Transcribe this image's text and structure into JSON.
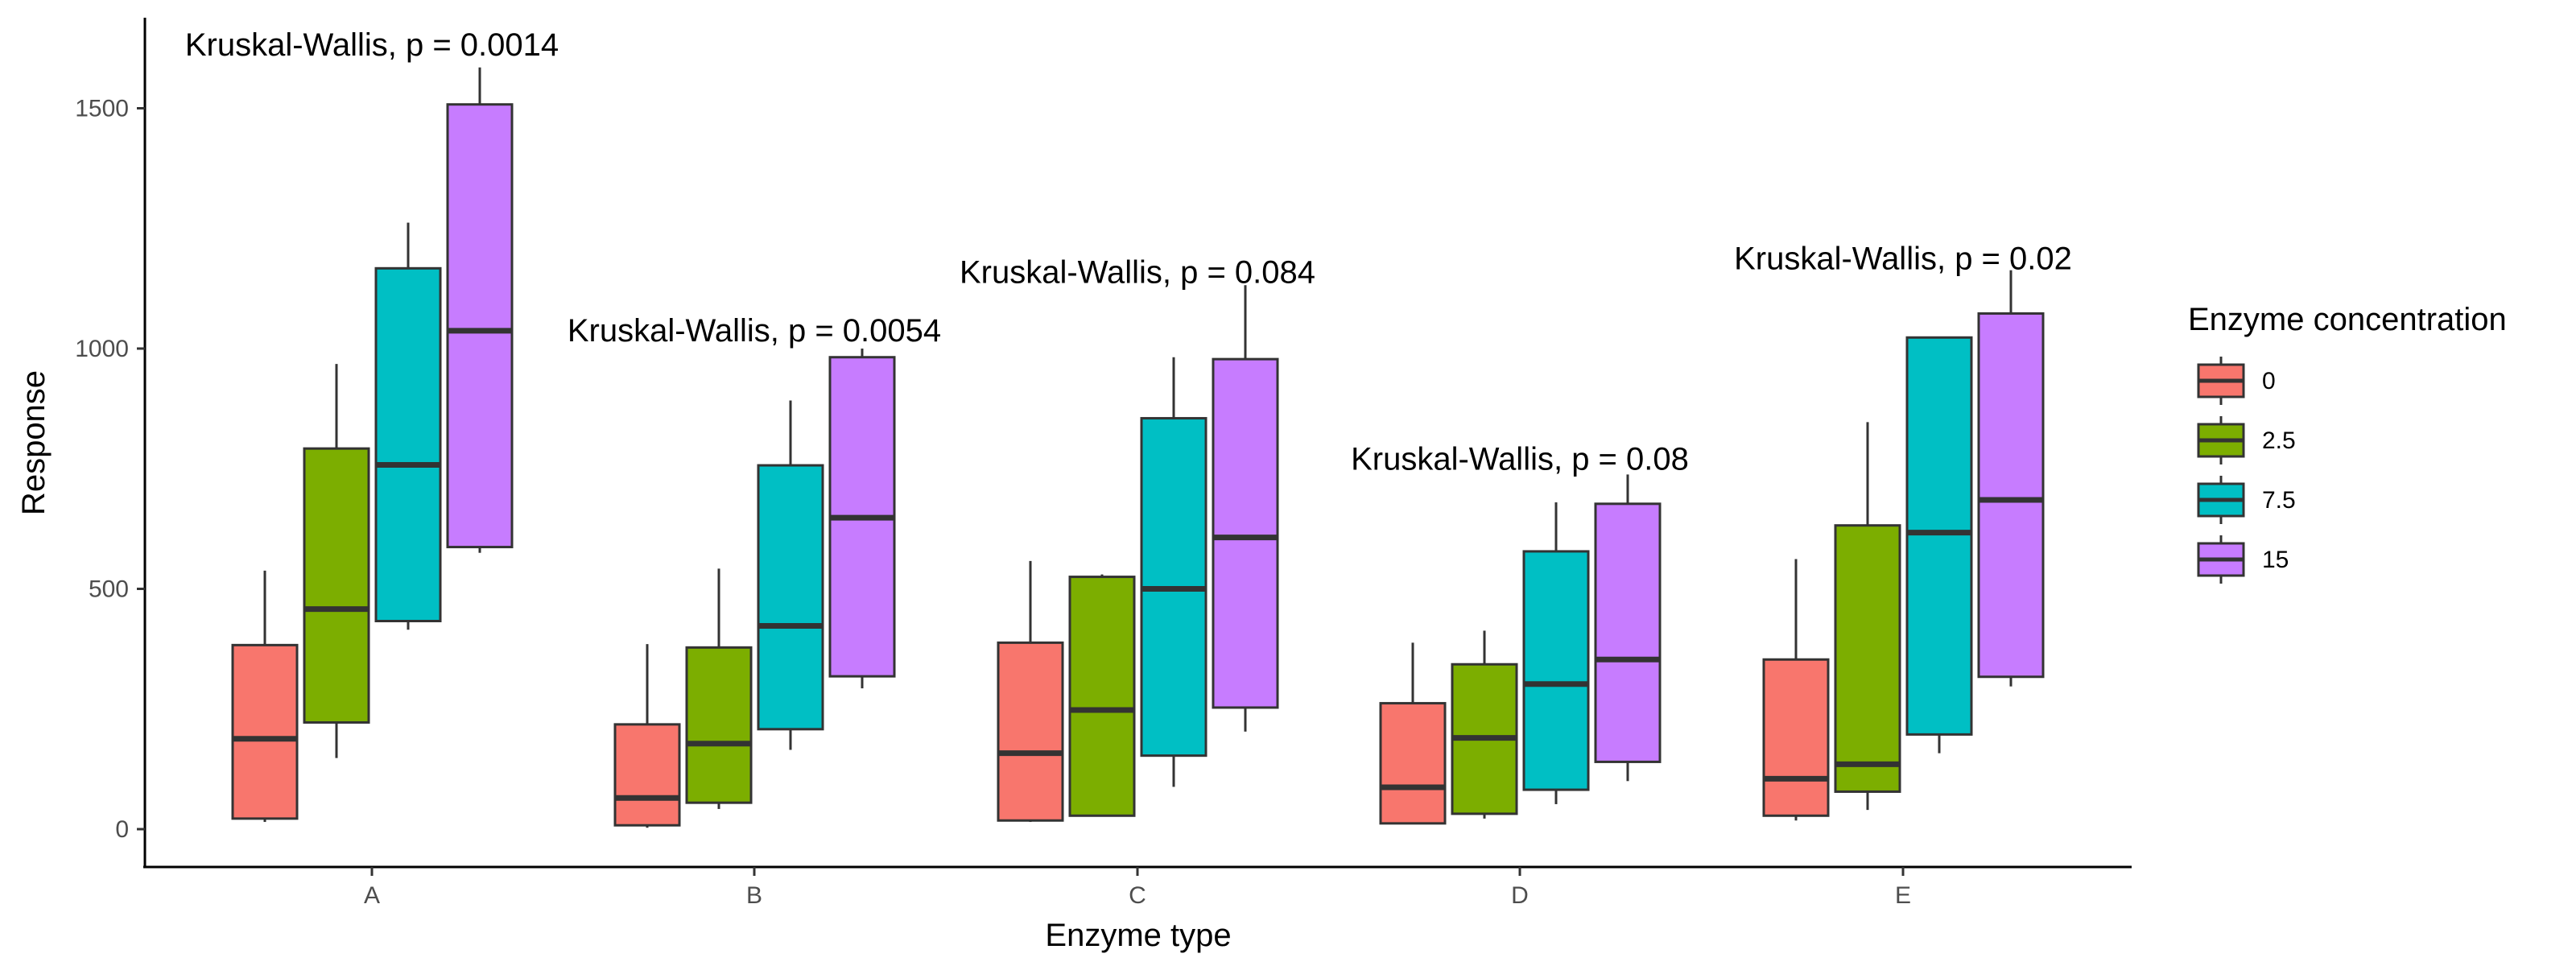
{
  "colors": {
    "0": "#F8766D",
    "2.5": "#7CAE00",
    "7.5": "#00BFC4",
    "15": "#C77CFF",
    "box_outline": "#333333",
    "axis": "#000000"
  },
  "chart_data": {
    "type": "box",
    "title": "",
    "xlabel": "Enzyme type",
    "ylabel": "Response",
    "ylim": [
      -75,
      1650
    ],
    "y_ticks": [
      0,
      500,
      1000,
      1500
    ],
    "categories": [
      "A",
      "B",
      "C",
      "D",
      "E"
    ],
    "grid": false,
    "legend": {
      "title": "Enzyme concentration",
      "position": "right",
      "entries": [
        "0",
        "2.5",
        "7.5",
        "15"
      ]
    },
    "series": [
      {
        "name": "0",
        "boxes": [
          {
            "category": "A",
            "min": 15,
            "q1": 22,
            "median": 188,
            "q3": 383,
            "max": 538
          },
          {
            "category": "B",
            "min": 3,
            "q1": 8,
            "median": 65,
            "q3": 218,
            "max": 385
          },
          {
            "category": "C",
            "min": 15,
            "q1": 18,
            "median": 158,
            "q3": 388,
            "max": 558
          },
          {
            "category": "D",
            "min": 12,
            "q1": 12,
            "median": 87,
            "q3": 262,
            "max": 388
          },
          {
            "category": "E",
            "min": 18,
            "q1": 28,
            "median": 105,
            "q3": 353,
            "max": 562
          }
        ]
      },
      {
        "name": "2.5",
        "boxes": [
          {
            "category": "A",
            "min": 148,
            "q1": 222,
            "median": 458,
            "q3": 792,
            "max": 968
          },
          {
            "category": "B",
            "min": 42,
            "q1": 55,
            "median": 178,
            "q3": 378,
            "max": 542
          },
          {
            "category": "C",
            "min": 28,
            "q1": 28,
            "median": 248,
            "q3": 525,
            "max": 530
          },
          {
            "category": "D",
            "min": 22,
            "q1": 32,
            "median": 190,
            "q3": 343,
            "max": 413
          },
          {
            "category": "E",
            "min": 40,
            "q1": 78,
            "median": 135,
            "q3": 632,
            "max": 847
          }
        ]
      },
      {
        "name": "7.5",
        "boxes": [
          {
            "category": "A",
            "min": 415,
            "q1": 433,
            "median": 758,
            "q3": 1167,
            "max": 1262
          },
          {
            "category": "B",
            "min": 165,
            "q1": 208,
            "median": 423,
            "q3": 757,
            "max": 892
          },
          {
            "category": "C",
            "min": 88,
            "q1": 153,
            "median": 500,
            "q3": 855,
            "max": 982
          },
          {
            "category": "D",
            "min": 52,
            "q1": 82,
            "median": 302,
            "q3": 578,
            "max": 680
          },
          {
            "category": "E",
            "min": 158,
            "q1": 197,
            "median": 617,
            "q3": 1023,
            "max": 1023
          }
        ]
      },
      {
        "name": "15",
        "boxes": [
          {
            "category": "A",
            "min": 575,
            "q1": 587,
            "median": 1037,
            "q3": 1508,
            "max": 1585
          },
          {
            "category": "B",
            "min": 293,
            "q1": 318,
            "median": 648,
            "q3": 982,
            "max": 1000
          },
          {
            "category": "C",
            "min": 203,
            "q1": 253,
            "median": 607,
            "q3": 978,
            "max": 1132
          },
          {
            "category": "D",
            "min": 100,
            "q1": 140,
            "median": 353,
            "q3": 677,
            "max": 738
          },
          {
            "category": "E",
            "min": 297,
            "q1": 317,
            "median": 685,
            "q3": 1073,
            "max": 1163
          }
        ]
      }
    ],
    "annotations": [
      {
        "category": "A",
        "text": "Kruskal-Wallis, p = 0.0014",
        "y": 1630
      },
      {
        "category": "B",
        "text": "Kruskal-Wallis, p = 0.0054",
        "y": 1035
      },
      {
        "category": "C",
        "text": "Kruskal-Wallis, p = 0.084",
        "y": 1157
      },
      {
        "category": "D",
        "text": "Kruskal-Wallis, p = 0.08",
        "y": 768
      },
      {
        "category": "E",
        "text": "Kruskal-Wallis, p = 0.02",
        "y": 1185
      }
    ]
  }
}
